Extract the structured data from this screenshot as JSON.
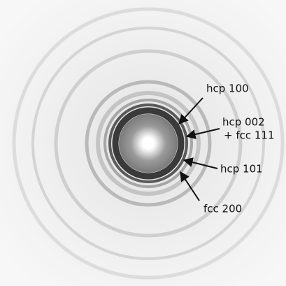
{
  "annotations": [
    {
      "label": "hcp 100"
    },
    {
      "lines": [
        "hcp 002",
        "+ fcc 111"
      ]
    },
    {
      "label": "hcp 101"
    },
    {
      "label": "fcc 200"
    }
  ]
}
